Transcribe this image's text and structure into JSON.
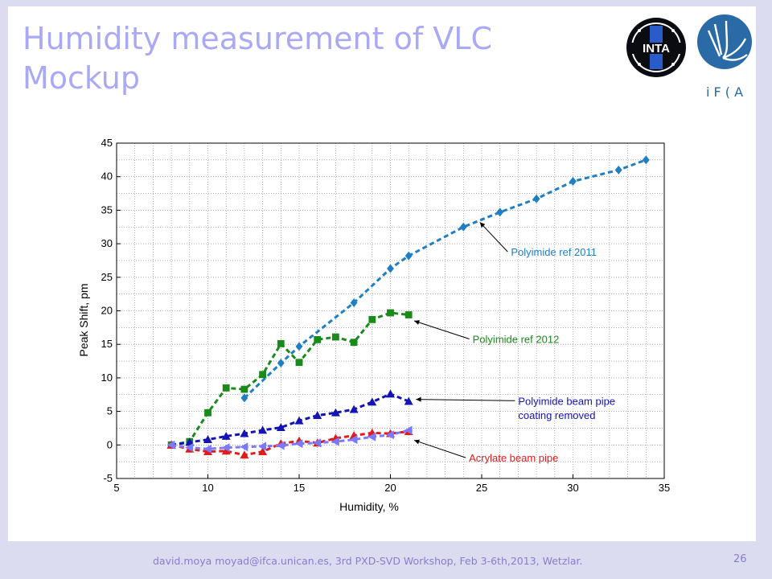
{
  "slide": {
    "title": "Humidity measurement  of VLC Mockup",
    "footer": "david.moya moyad@ifca.unican.es, 3rd PXD-SVD Workshop, Feb 3-6th,2013, Wetzlar.",
    "page_number": "26"
  },
  "logos": {
    "inta": "INTA",
    "ifca": "i F ( A"
  },
  "colors": {
    "title": "#a9a9f5",
    "footer": "#8a7bd1",
    "background": "#dcdcf0"
  },
  "chart_data": {
    "type": "line",
    "xlabel": "Humidity, %",
    "ylabel": "Peak Shift, pm",
    "xlim": [
      5,
      35
    ],
    "ylim": [
      -5,
      45
    ],
    "xticks": [
      5,
      10,
      15,
      20,
      25,
      30,
      35
    ],
    "yticks": [
      -5,
      0,
      5,
      10,
      15,
      20,
      25,
      30,
      35,
      40,
      45
    ],
    "grid": true,
    "series": [
      {
        "name": "Polyimide ref 2011",
        "color": "#1f7fc4",
        "marker": "diamond",
        "x": [
          12,
          14,
          15,
          18,
          20,
          21,
          24,
          26,
          28,
          30,
          32.5,
          34
        ],
        "y": [
          7,
          12.2,
          14.7,
          21.2,
          26.3,
          28.2,
          32.5,
          34.7,
          36.7,
          39.3,
          41,
          42.5
        ]
      },
      {
        "name": "Polyimide ref 2012",
        "color": "#1a8a1a",
        "marker": "square",
        "x": [
          8,
          9,
          10,
          11,
          12,
          13,
          14,
          15,
          16,
          17,
          18,
          19,
          20,
          21
        ],
        "y": [
          0,
          0.5,
          4.8,
          8.5,
          8.3,
          10.5,
          15.1,
          12.3,
          15.7,
          16.1,
          15.3,
          18.7,
          19.7,
          19.4
        ]
      },
      {
        "name": "Polyimide beam pipe coating removed",
        "color": "#1414b4",
        "marker": "triangle",
        "x": [
          8,
          9,
          10,
          11,
          12,
          13,
          14,
          15,
          16,
          17,
          18,
          19,
          20,
          21
        ],
        "y": [
          0,
          0.4,
          0.8,
          1.3,
          1.7,
          2.2,
          2.6,
          3.6,
          4.4,
          4.8,
          5.3,
          6.4,
          7.6,
          6.5
        ]
      },
      {
        "name": "Acrylate beam pipe",
        "color": "#e01c1c",
        "marker": "triangle",
        "x": [
          8,
          9,
          10,
          11,
          12,
          13,
          14,
          15,
          16,
          17,
          18,
          19,
          20,
          21
        ],
        "y": [
          0,
          -0.6,
          -1,
          -0.9,
          -1.5,
          -1,
          0.2,
          0.6,
          0.3,
          1,
          1.4,
          1.8,
          1.7,
          2
        ]
      },
      {
        "name": "",
        "color": "#7a7aff",
        "marker": "triangle-left",
        "x": [
          8,
          9,
          10,
          11,
          12,
          13,
          14,
          15,
          16,
          17,
          18,
          19,
          20,
          21
        ],
        "y": [
          0,
          -0.4,
          -0.6,
          -0.4,
          -0.3,
          -0.2,
          -0.1,
          0.2,
          0.3,
          0.5,
          0.8,
          1.2,
          1.5,
          2.2
        ]
      }
    ],
    "annotations": [
      {
        "text": "Polyimide ref 2011",
        "color": "#1f7fc4",
        "x": 26.6,
        "y": 28.2,
        "arrow_to": [
          24.9,
          33.2
        ]
      },
      {
        "text": "Polyimide ref 2012",
        "color": "#1a8a1a",
        "x": 24.5,
        "y": 15.2,
        "arrow_to": [
          21.3,
          18.5
        ]
      },
      {
        "text": "Polyimide beam pipe",
        "color": "#1414b4",
        "x": 27,
        "y": 6,
        "arrow_to": [
          21.4,
          6.8
        ]
      },
      {
        "text": "coating removed",
        "color": "#1414b4",
        "x": 27,
        "y": 3.9,
        "arrow_to": null
      },
      {
        "text": "Acrylate beam pipe",
        "color": "#e01c1c",
        "x": 24.3,
        "y": -2.5,
        "arrow_to": [
          21.3,
          0.7
        ]
      }
    ]
  }
}
